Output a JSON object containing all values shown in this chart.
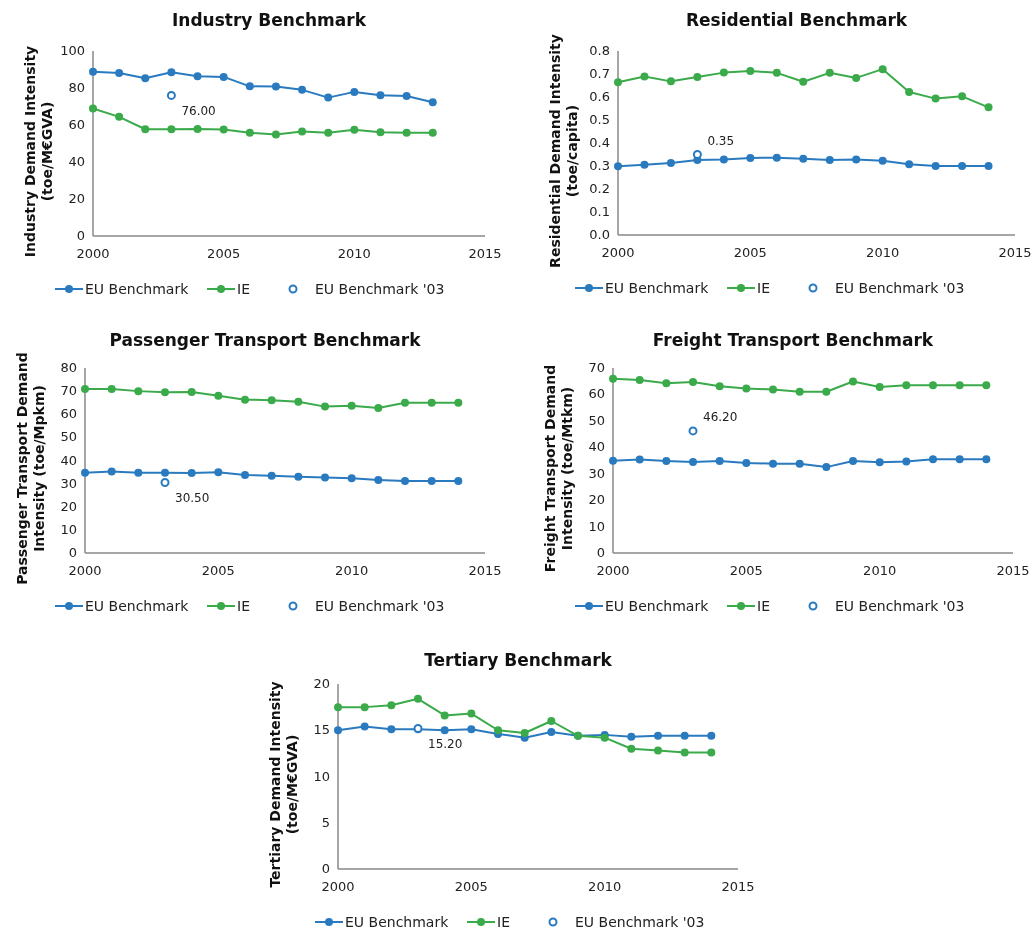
{
  "chart_data": [
    {
      "type": "line",
      "title": "Industry Benchmark",
      "ylabel": "Industry Demand Intensity (toe/M€GVA)",
      "x": [
        2000,
        2001,
        2002,
        2003,
        2004,
        2005,
        2006,
        2007,
        2008,
        2009,
        2010,
        2011,
        2012,
        2013
      ],
      "xlim": [
        2000,
        2015
      ],
      "xticks": [
        2000,
        2005,
        2010,
        2015
      ],
      "ylim": [
        0,
        100
      ],
      "yticks": [
        0,
        20,
        40,
        60,
        80,
        100
      ],
      "grid": false,
      "legend": "bottom",
      "marker": "circle",
      "series": [
        {
          "name": "EU Benchmark",
          "color": "#2a7abf",
          "values": [
            88.8,
            88.1,
            85.3,
            88.5,
            86.3,
            86.0,
            80.9,
            80.8,
            79.0,
            74.8,
            77.9,
            76.1,
            75.7,
            72.3
          ]
        },
        {
          "name": "IE",
          "color": "#3aaa4a",
          "values": [
            68.9,
            64.4,
            57.7,
            57.7,
            57.9,
            57.6,
            55.8,
            54.9,
            56.5,
            55.8,
            57.4,
            56.1,
            55.8,
            55.8
          ]
        },
        {
          "name": "EU Benchmark '03",
          "type": "scatter",
          "color": "#2a7abf",
          "values": [
            null,
            null,
            null,
            76.0,
            null,
            null,
            null,
            null,
            null,
            null,
            null,
            null,
            null,
            null
          ],
          "value_labels": [
            null,
            null,
            null,
            "76.00",
            null,
            null,
            null,
            null,
            null,
            null,
            null,
            null,
            null,
            null
          ]
        }
      ]
    },
    {
      "type": "line",
      "title": "Residential Benchmark",
      "ylabel": "Residential Demand Intensity (toe/capita)",
      "x": [
        2000,
        2001,
        2002,
        2003,
        2004,
        2005,
        2006,
        2007,
        2008,
        2009,
        2010,
        2011,
        2012,
        2013,
        2014
      ],
      "xlim": [
        2000,
        2015
      ],
      "xticks": [
        2000,
        2005,
        2010,
        2015
      ],
      "ylim": [
        0,
        0.8
      ],
      "yticks": [
        {
          "value": 0,
          "label": "0.0"
        },
        0.1,
        0.2,
        0.3,
        0.4,
        0.5,
        0.6,
        0.7,
        0.8
      ],
      "grid": false,
      "legend": "bottom",
      "marker": "circle",
      "series": [
        {
          "name": "EU Benchmark",
          "color": "#2a7abf",
          "values": [
            0.299,
            0.305,
            0.313,
            0.326,
            0.328,
            0.335,
            0.336,
            0.331,
            0.326,
            0.328,
            0.323,
            0.308,
            0.3,
            0.3,
            0.3
          ]
        },
        {
          "name": "IE",
          "color": "#3aaa4a",
          "values": [
            0.664,
            0.689,
            0.668,
            0.687,
            0.706,
            0.713,
            0.705,
            0.666,
            0.705,
            0.683,
            0.721,
            0.622,
            0.593,
            0.603,
            0.555
          ]
        },
        {
          "name": "EU Benchmark '03",
          "type": "scatter",
          "color": "#2a7abf",
          "values": [
            null,
            null,
            null,
            0.35,
            null,
            null,
            null,
            null,
            null,
            null,
            null,
            null,
            null,
            null,
            null
          ],
          "value_labels": [
            null,
            null,
            null,
            "0.35",
            null,
            null,
            null,
            null,
            null,
            null,
            null,
            null,
            null,
            null,
            null
          ]
        }
      ]
    },
    {
      "type": "line",
      "title": "Passenger Transport Benchmark",
      "ylabel": "Passenger Transport Demand Intensity  (toe/Mpkm)",
      "x": [
        2000,
        2001,
        2002,
        2003,
        2004,
        2005,
        2006,
        2007,
        2008,
        2009,
        2010,
        2011,
        2012,
        2013,
        2014
      ],
      "xlim": [
        2000,
        2015
      ],
      "xticks": [
        2000,
        2005,
        2010,
        2015
      ],
      "ylim": [
        0,
        80
      ],
      "yticks": [
        0,
        10,
        20,
        30,
        40,
        50,
        60,
        70,
        80
      ],
      "grid": false,
      "legend": "bottom",
      "marker": "circle",
      "series": [
        {
          "name": "EU Benchmark",
          "color": "#2a7abf",
          "values": [
            34.7,
            35.2,
            34.7,
            34.7,
            34.6,
            34.9,
            33.7,
            33.4,
            33.0,
            32.7,
            32.3,
            31.6,
            31.1,
            31.1,
            31.1
          ]
        },
        {
          "name": "IE",
          "color": "#3aaa4a",
          "values": [
            70.9,
            70.9,
            70.0,
            69.5,
            69.6,
            68.0,
            66.3,
            66.1,
            65.4,
            63.3,
            63.7,
            62.7,
            65.0,
            65.0,
            65.0
          ]
        },
        {
          "name": "EU Benchmark '03",
          "type": "scatter",
          "color": "#2a7abf",
          "values": [
            null,
            null,
            null,
            30.5,
            null,
            null,
            null,
            null,
            null,
            null,
            null,
            null,
            null,
            null,
            null
          ],
          "value_labels": [
            null,
            null,
            null,
            "30.50",
            null,
            null,
            null,
            null,
            null,
            null,
            null,
            null,
            null,
            null,
            null
          ]
        }
      ]
    },
    {
      "type": "line",
      "title": "Freight Transport Benchmark",
      "ylabel": "Freight Transport Demand Intensity  (toe/Mtkm)",
      "x": [
        2000,
        2001,
        2002,
        2003,
        2004,
        2005,
        2006,
        2007,
        2008,
        2009,
        2010,
        2011,
        2012,
        2013,
        2014
      ],
      "xlim": [
        2000,
        2015
      ],
      "xticks": [
        2000,
        2005,
        2010,
        2015
      ],
      "ylim": [
        0,
        70
      ],
      "yticks": [
        0,
        10,
        20,
        30,
        40,
        50,
        60,
        70
      ],
      "grid": false,
      "legend": "bottom",
      "marker": "circle",
      "series": [
        {
          "name": "EU Benchmark",
          "color": "#2a7abf",
          "values": [
            34.9,
            35.4,
            34.8,
            34.4,
            34.8,
            34.1,
            33.8,
            33.8,
            32.5,
            34.8,
            34.3,
            34.6,
            35.5,
            35.5,
            35.5
          ]
        },
        {
          "name": "IE",
          "color": "#3aaa4a",
          "values": [
            65.9,
            65.5,
            64.2,
            64.7,
            63.1,
            62.2,
            61.9,
            61.0,
            61.0,
            64.9,
            62.8,
            63.5,
            63.5,
            63.5,
            63.5
          ]
        },
        {
          "name": "EU Benchmark '03",
          "type": "scatter",
          "color": "#2a7abf",
          "values": [
            null,
            null,
            null,
            46.2,
            null,
            null,
            null,
            null,
            null,
            null,
            null,
            null,
            null,
            null,
            null
          ],
          "value_labels": [
            null,
            null,
            null,
            "46.20",
            null,
            null,
            null,
            null,
            null,
            null,
            null,
            null,
            null,
            null,
            null
          ]
        }
      ]
    },
    {
      "type": "line",
      "title": "Tertiary Benchmark",
      "ylabel": "Tertiary Demand Intensity (toe/M€GVA)",
      "x": [
        2000,
        2001,
        2002,
        2003,
        2004,
        2005,
        2006,
        2007,
        2008,
        2009,
        2010,
        2011,
        2012,
        2013,
        2014
      ],
      "xlim": [
        2000,
        2015
      ],
      "xticks": [
        2000,
        2005,
        2010,
        2015
      ],
      "ylim": [
        0,
        20
      ],
      "yticks": [
        0,
        5,
        10,
        15,
        20
      ],
      "grid": false,
      "legend": "bottom",
      "marker": "circle",
      "series": [
        {
          "name": "EU Benchmark",
          "color": "#2a7abf",
          "values": [
            15.0,
            15.4,
            15.1,
            15.1,
            15.0,
            15.1,
            14.6,
            14.2,
            14.8,
            14.4,
            14.5,
            14.3,
            14.4,
            14.4,
            14.4
          ]
        },
        {
          "name": "IE",
          "color": "#3aaa4a",
          "values": [
            17.5,
            17.5,
            17.7,
            18.4,
            16.6,
            16.8,
            15.0,
            14.7,
            16.0,
            14.4,
            14.2,
            13.0,
            12.8,
            12.6,
            12.6
          ]
        },
        {
          "name": "EU Benchmark '03",
          "type": "scatter",
          "color": "#2a7abf",
          "values": [
            null,
            null,
            null,
            15.2,
            null,
            null,
            null,
            null,
            null,
            null,
            null,
            null,
            null,
            null,
            null
          ],
          "value_labels": [
            null,
            null,
            null,
            "15.20",
            null,
            null,
            null,
            null,
            null,
            null,
            null,
            null,
            null,
            null,
            null
          ]
        }
      ]
    }
  ]
}
